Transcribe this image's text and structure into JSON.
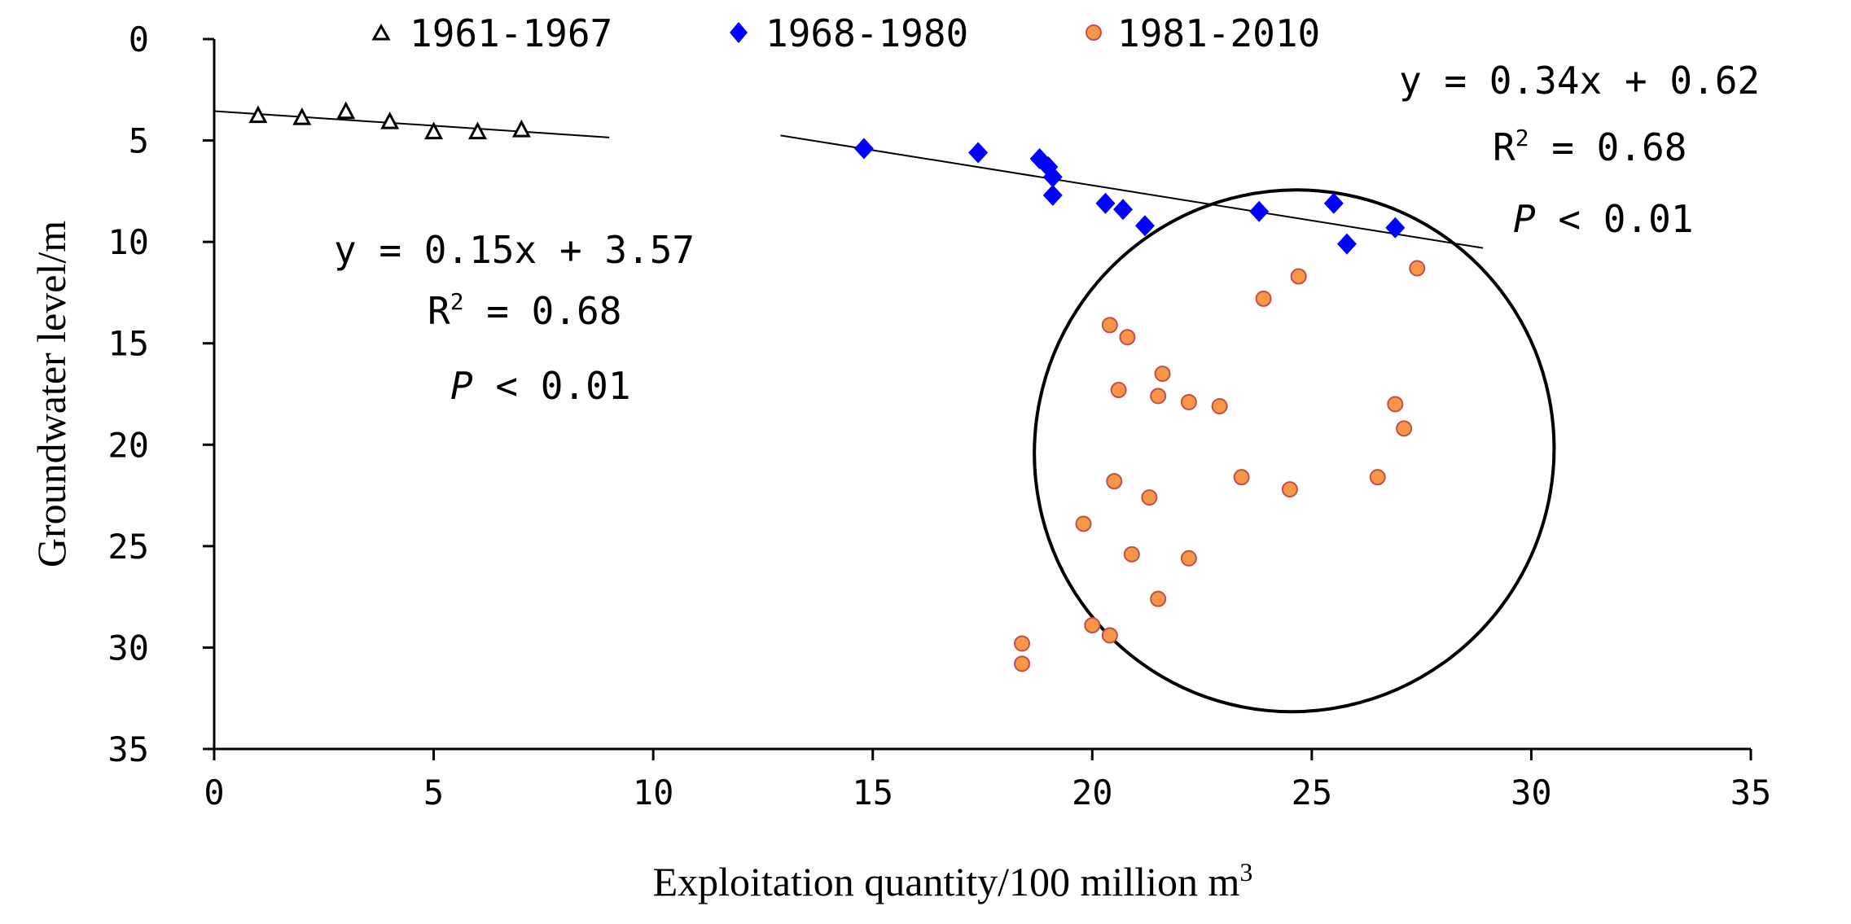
{
  "chart_data": {
    "type": "scatter",
    "title": "",
    "xlabel": "Exploitation quantity/100 million m",
    "xlabel_sup": "3",
    "ylabel": "Groundwater level/m",
    "xlim": [
      0,
      35
    ],
    "ylim": [
      0,
      35
    ],
    "y_inverted": true,
    "x_ticks": [
      0,
      5,
      10,
      15,
      20,
      25,
      30,
      35
    ],
    "y_ticks": [
      0,
      5,
      10,
      15,
      20,
      25,
      30,
      35
    ],
    "grid": false,
    "legend_position": "top",
    "series": [
      {
        "name": "1961-1967",
        "marker": "triangle-open",
        "color": "#000000",
        "points": [
          [
            1,
            3.8
          ],
          [
            2,
            3.9
          ],
          [
            3,
            3.6
          ],
          [
            4,
            4.1
          ],
          [
            5,
            4.6
          ],
          [
            6,
            4.6
          ],
          [
            7,
            4.5
          ]
        ]
      },
      {
        "name": "1968-1980",
        "marker": "diamond",
        "color": "#0000ff",
        "points": [
          [
            14.8,
            5.4
          ],
          [
            17.4,
            5.6
          ],
          [
            18.8,
            5.9
          ],
          [
            19.0,
            6.3
          ],
          [
            19.1,
            6.8
          ],
          [
            19.1,
            7.7
          ],
          [
            20.3,
            8.1
          ],
          [
            20.7,
            8.4
          ],
          [
            21.2,
            9.2
          ],
          [
            23.8,
            8.5
          ],
          [
            25.5,
            8.1
          ],
          [
            25.8,
            10.1
          ],
          [
            26.9,
            9.3
          ]
        ]
      },
      {
        "name": "1981-2010",
        "marker": "circle",
        "color": "#f79646",
        "stroke": "#c0504d",
        "points": [
          [
            27.4,
            11.3
          ],
          [
            24.7,
            11.7
          ],
          [
            23.9,
            12.8
          ],
          [
            20.4,
            14.1
          ],
          [
            20.8,
            14.7
          ],
          [
            21.6,
            16.5
          ],
          [
            20.6,
            17.3
          ],
          [
            21.5,
            17.6
          ],
          [
            22.2,
            17.9
          ],
          [
            22.9,
            18.1
          ],
          [
            26.9,
            18.0
          ],
          [
            27.1,
            19.2
          ],
          [
            20.5,
            21.8
          ],
          [
            23.4,
            21.6
          ],
          [
            24.5,
            22.2
          ],
          [
            26.5,
            21.6
          ],
          [
            21.3,
            22.6
          ],
          [
            19.8,
            23.9
          ],
          [
            20.9,
            25.4
          ],
          [
            22.2,
            25.6
          ],
          [
            21.5,
            27.6
          ],
          [
            20.0,
            28.9
          ],
          [
            20.4,
            29.4
          ],
          [
            18.4,
            29.8
          ],
          [
            18.4,
            30.8
          ]
        ]
      }
    ],
    "trendlines": [
      {
        "name": "trend-1961-1967",
        "x1": 0,
        "y1": 3.55,
        "x2": 9,
        "y2": 4.85
      },
      {
        "name": "trend-1968-1980",
        "x1": 12.9,
        "y1": 4.75,
        "x2": 28.9,
        "y2": 10.3
      }
    ],
    "ellipse": {
      "cx": 24.6,
      "cy": 20.3,
      "rx": 5.9,
      "ry": 12.9,
      "rotation_deg": 33
    },
    "annotations": [
      {
        "name": "equation-1961-1967",
        "line1": "y = 0.15x + 3.57",
        "r2_label": "R",
        "r2_sup": "2",
        "r2_value": " = 0.68",
        "p_label": "P",
        "p_value": " < 0.01"
      },
      {
        "name": "equation-1968-1980",
        "line1": "y = 0.34x + 0.62",
        "r2_label": "R",
        "r2_sup": "2",
        "r2_value": " = 0.68",
        "p_label": "P",
        "p_value": " < 0.01"
      }
    ]
  }
}
